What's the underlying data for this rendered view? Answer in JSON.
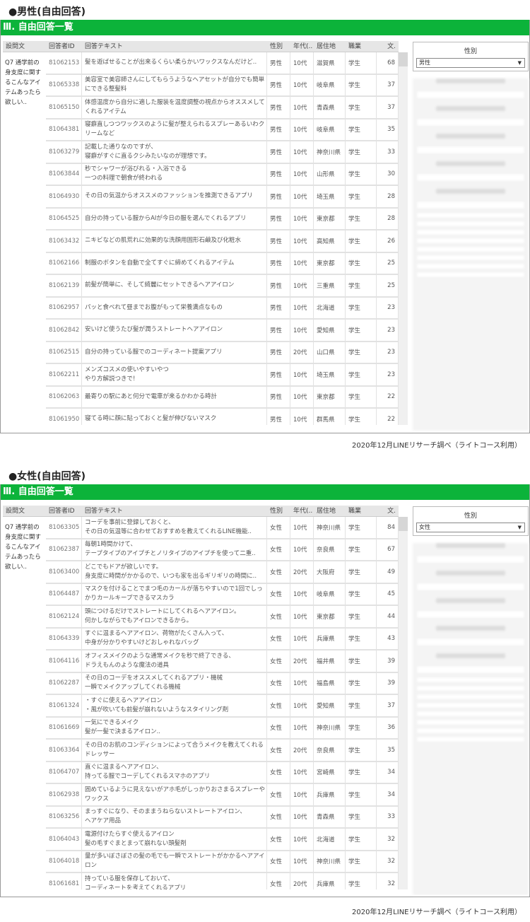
{
  "footer": "2020年12月LINEリサーチ調べ（ライトコース利用）",
  "section_header": "Ⅲ. 自由回答一覧",
  "columns": [
    "設問文",
    "回答者ID",
    "回答テキスト",
    "性別",
    "年代(..",
    "居住地",
    "職業",
    "文."
  ],
  "question": "Q7 通学前の身支度に関するこんなアイテムあったら欲しい..",
  "accent_color": "#0cb33a",
  "sections": [
    {
      "title": "●男性(自由回答)",
      "filter_label": "性別",
      "filter_value": "男性",
      "rows": [
        [
          "81062153",
          "髪を遊ばせることが出来るくらい柔らかいワックスなんだけど..",
          "男性",
          "10代",
          "滋賀県",
          "学生",
          "68"
        ],
        [
          "81065338",
          "美容室で美容師さんにしてもらうようなヘアセットが自分でも簡単にできる整髪料",
          "男性",
          "10代",
          "岐阜県",
          "学生",
          "37"
        ],
        [
          "81065150",
          "体感温度から自分に適した服装を温度調整の視点からオススメしてくれるアイテム",
          "男性",
          "10代",
          "青森県",
          "学生",
          "37"
        ],
        [
          "81064381",
          "寝癖直しつつワックスのように髪が整えられるスプレーあるいわクリームなど",
          "男性",
          "10代",
          "岐阜県",
          "学生",
          "35"
        ],
        [
          "81063279",
          "記載した通りなのですが、\n寝癖がすぐに直るクシみたいなのが理想です。",
          "男性",
          "10代",
          "神奈川県",
          "学生",
          "33"
        ],
        [
          "81063844",
          "秒でシャワーが浴びれる・入浴できる\n一つの料理で朝食が終われる",
          "男性",
          "10代",
          "山形県",
          "学生",
          "30"
        ],
        [
          "81064930",
          "その日の気温からオススメのファッションを推測できるアプリ",
          "男性",
          "10代",
          "埼玉県",
          "学生",
          "28"
        ],
        [
          "81064525",
          "自分の持っている服からAIが今日の服を選んでくれるアプリ",
          "男性",
          "10代",
          "東京都",
          "学生",
          "28"
        ],
        [
          "81063432",
          "ニキビなどの肌荒れに効果的な洗顔用固形石鹸及び化粧水",
          "男性",
          "10代",
          "高知県",
          "学生",
          "26"
        ],
        [
          "81062166",
          "制服のボタンを自動で全てすぐに締めてくれるアイテム",
          "男性",
          "10代",
          "東京都",
          "学生",
          "25"
        ],
        [
          "81062139",
          "前髪が簡単に、そして綺麗にセットできるヘアアイロン",
          "男性",
          "10代",
          "三重県",
          "学生",
          "25"
        ],
        [
          "81062957",
          "パッと食べれて昼までお腹がもって栄養満点なもの",
          "男性",
          "10代",
          "北海道",
          "学生",
          "23"
        ],
        [
          "81062842",
          "安いけど使うたび髪が潤うストレートヘアアイロン",
          "男性",
          "10代",
          "愛知県",
          "学生",
          "23"
        ],
        [
          "81062515",
          "自分の持っている服でのコーディネート提案アプリ",
          "男性",
          "20代",
          "山口県",
          "学生",
          "23"
        ],
        [
          "81062211",
          "メンズコスメの使いやすいやつ\nやり方解説つきで!",
          "男性",
          "10代",
          "埼玉県",
          "学生",
          "23"
        ],
        [
          "81062063",
          "最寄りの駅にあと何分で電車が来るかわかる時計",
          "男性",
          "10代",
          "東京都",
          "学生",
          "22"
        ],
        [
          "81061950",
          "寝てる時に顔に貼っておくと髪が伸びないマスク",
          "男性",
          "10代",
          "群馬県",
          "学生",
          "22"
        ]
      ]
    },
    {
      "title": "●女性(自由回答)",
      "filter_label": "性別",
      "filter_value": "女性",
      "rows": [
        [
          "81063305",
          "コーデを事前に登録しておくと、\nその日の気温等に合わせておすすめを教えてくれるLINE機能..",
          "女性",
          "10代",
          "神奈川県",
          "学生",
          "84"
        ],
        [
          "81062387",
          "毎朝1時間かけて、\nテープタイプのアイプチとノリタイプのアイプチを使って二重..",
          "女性",
          "10代",
          "奈良県",
          "学生",
          "67"
        ],
        [
          "81063400",
          "どこでもドアが欲しいです。\n身支度に時間がかかるので、いつも家を出るギリギリの時間に..",
          "女性",
          "20代",
          "大阪府",
          "学生",
          "49"
        ],
        [
          "81064487",
          "マスクを付けることでまつ毛のカールが落ちやすいので1回でしっかりカールキープできるマスカラ",
          "女性",
          "10代",
          "岐阜県",
          "学生",
          "45"
        ],
        [
          "81062124",
          "頭につけるだけでストレートにしてくれるヘアアイロン。\n何かしながらでもアイロンできるから。",
          "女性",
          "10代",
          "東京都",
          "学生",
          "44"
        ],
        [
          "81064339",
          "すぐに温まるヘアアイロン、荷物がたくさん入って、\n中身が分かりやすいけどおしゃれなバッグ",
          "女性",
          "10代",
          "兵庫県",
          "学生",
          "43"
        ],
        [
          "81064116",
          "オフィスメイクのような通常メイクを秒で終了できる、\nドラえもんのような魔法の道具",
          "女性",
          "20代",
          "福井県",
          "学生",
          "39"
        ],
        [
          "81062287",
          "その日のコーデをオススメしてくれるアプリ・機械\n一瞬でメイクアップしてくれる機械",
          "女性",
          "10代",
          "福島県",
          "学生",
          "39"
        ],
        [
          "81061324",
          "・すぐに使えるヘアアイロン\n・風が吹いても前髪が崩れないようなスタイリング剤",
          "女性",
          "10代",
          "愛知県",
          "学生",
          "37"
        ],
        [
          "81061669",
          "一気にできるメイク\n髪が一髪で決まるアイロン..",
          "女性",
          "10代",
          "神奈川県",
          "学生",
          "36"
        ],
        [
          "81063364",
          "その日のお肌のコンディションによって合うメイクを教えてくれるドレッサー",
          "女性",
          "20代",
          "奈良県",
          "学生",
          "35"
        ],
        [
          "81064707",
          "直ぐに温まるヘアアイロン、\n持ってる服でコーデしてくれるスマホのアプリ",
          "女性",
          "10代",
          "宮崎県",
          "学生",
          "34"
        ],
        [
          "81062938",
          "固めているように見えないがアホ毛がしっかりおさまるスプレーやワックス",
          "女性",
          "10代",
          "兵庫県",
          "学生",
          "34"
        ],
        [
          "81063256",
          "まっすぐになり、そのままうねらないストレートアイロン、\nヘアケア用品",
          "女性",
          "10代",
          "青森県",
          "学生",
          "33"
        ],
        [
          "81064043",
          "電源付けたらすぐ使えるアイロン\n髪の毛すぐまとまって崩れない頭髪剤",
          "女性",
          "10代",
          "北海道",
          "学生",
          "32"
        ],
        [
          "81064018",
          "量が多いぼさぼさの髪の毛でも一瞬でストレートがかかるヘアアイロン",
          "女性",
          "10代",
          "神奈川県",
          "学生",
          "32"
        ],
        [
          "81061681",
          "持っている服を保存しておいて、\nコーディネートを考えてくれるアプリ",
          "女性",
          "20代",
          "兵庫県",
          "学生",
          "32"
        ]
      ]
    }
  ]
}
